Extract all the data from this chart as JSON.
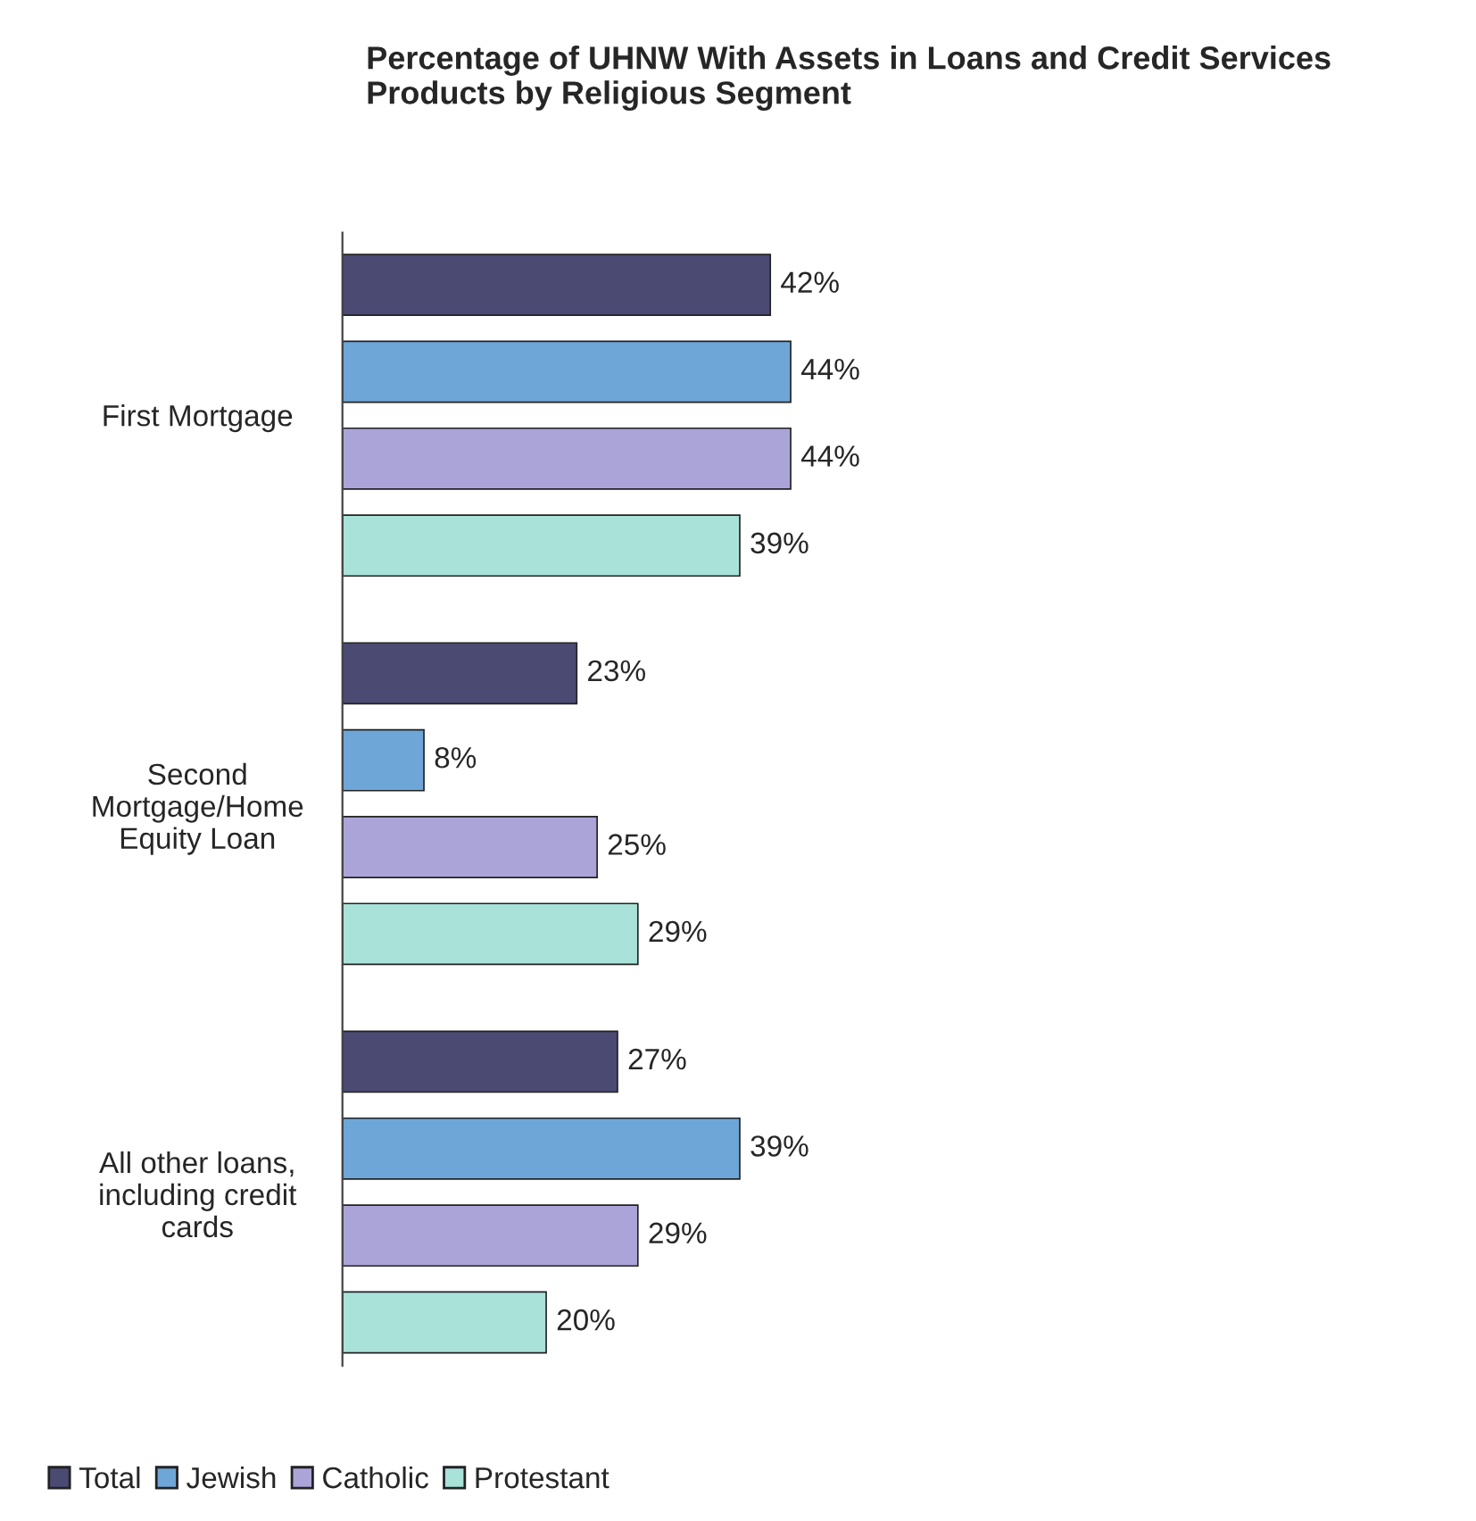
{
  "chart_data": {
    "type": "bar",
    "orientation": "horizontal",
    "title": "Percentage of UHNW With Assets in Loans and Credit Services Products by Religious Segment",
    "categories": [
      "First Mortgage",
      "Second Mortgage/Home Equity Loan",
      "All other loans, including credit cards"
    ],
    "series": [
      {
        "name": "Total",
        "color": "#4b4a72",
        "values": [
          42,
          23,
          27
        ],
        "value_labels": [
          "42%",
          "23%",
          "27%"
        ]
      },
      {
        "name": "Jewish",
        "color": "#6ea6d8",
        "values": [
          44,
          8,
          39
        ],
        "value_labels": [
          "44%",
          "8%",
          "39%"
        ]
      },
      {
        "name": "Catholic",
        "color": "#aba4d8",
        "values": [
          44,
          25,
          29
        ],
        "value_labels": [
          "44%",
          "25%",
          "29%"
        ]
      },
      {
        "name": "Protestant",
        "color": "#a9e2d8",
        "values": [
          39,
          29,
          20
        ],
        "value_labels": [
          "39%",
          "29%",
          "20%"
        ]
      }
    ],
    "legend": "bottom",
    "tick_labels": "y"
  }
}
